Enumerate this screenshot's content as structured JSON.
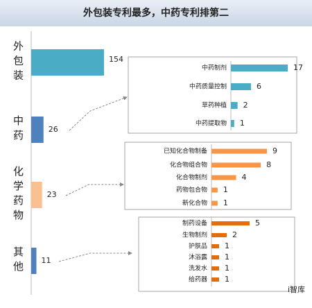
{
  "watermark": "i智库",
  "chart_data": [
    {
      "type": "bar",
      "orientation": "horizontal",
      "title": "外包装专利最多，中药专利排第二",
      "categories": [
        "外包装",
        "中药",
        "化学药物",
        "其他"
      ],
      "values": [
        154,
        26,
        23,
        11
      ],
      "colors": [
        "#4bacc6",
        "#4f81bd",
        "#fac090",
        "#4f81bd"
      ],
      "xlim": [
        0,
        154
      ]
    },
    {
      "type": "bar",
      "orientation": "horizontal",
      "categories": [
        "中药制剂",
        "中药质量控制",
        "草药种植",
        "中药提取物"
      ],
      "values": [
        17,
        6,
        2,
        1
      ],
      "color": "#4bacc6",
      "xlim": [
        0,
        17
      ]
    },
    {
      "type": "bar",
      "orientation": "horizontal",
      "categories": [
        "已知化合物制备",
        "化合物组合物",
        "化合物制剂",
        "药物包合物",
        "新化合物"
      ],
      "values": [
        9,
        8,
        4,
        1,
        1
      ],
      "color": "#f79646",
      "xlim": [
        0,
        9
      ]
    },
    {
      "type": "bar",
      "orientation": "horizontal",
      "categories": [
        "制药设备",
        "生物制剂",
        "护肤品",
        "沐浴露",
        "洗发水",
        "给药器"
      ],
      "values": [
        5,
        2,
        1,
        1,
        1,
        1
      ],
      "color": "#e46c0a",
      "xlim": [
        0,
        7
      ]
    }
  ]
}
